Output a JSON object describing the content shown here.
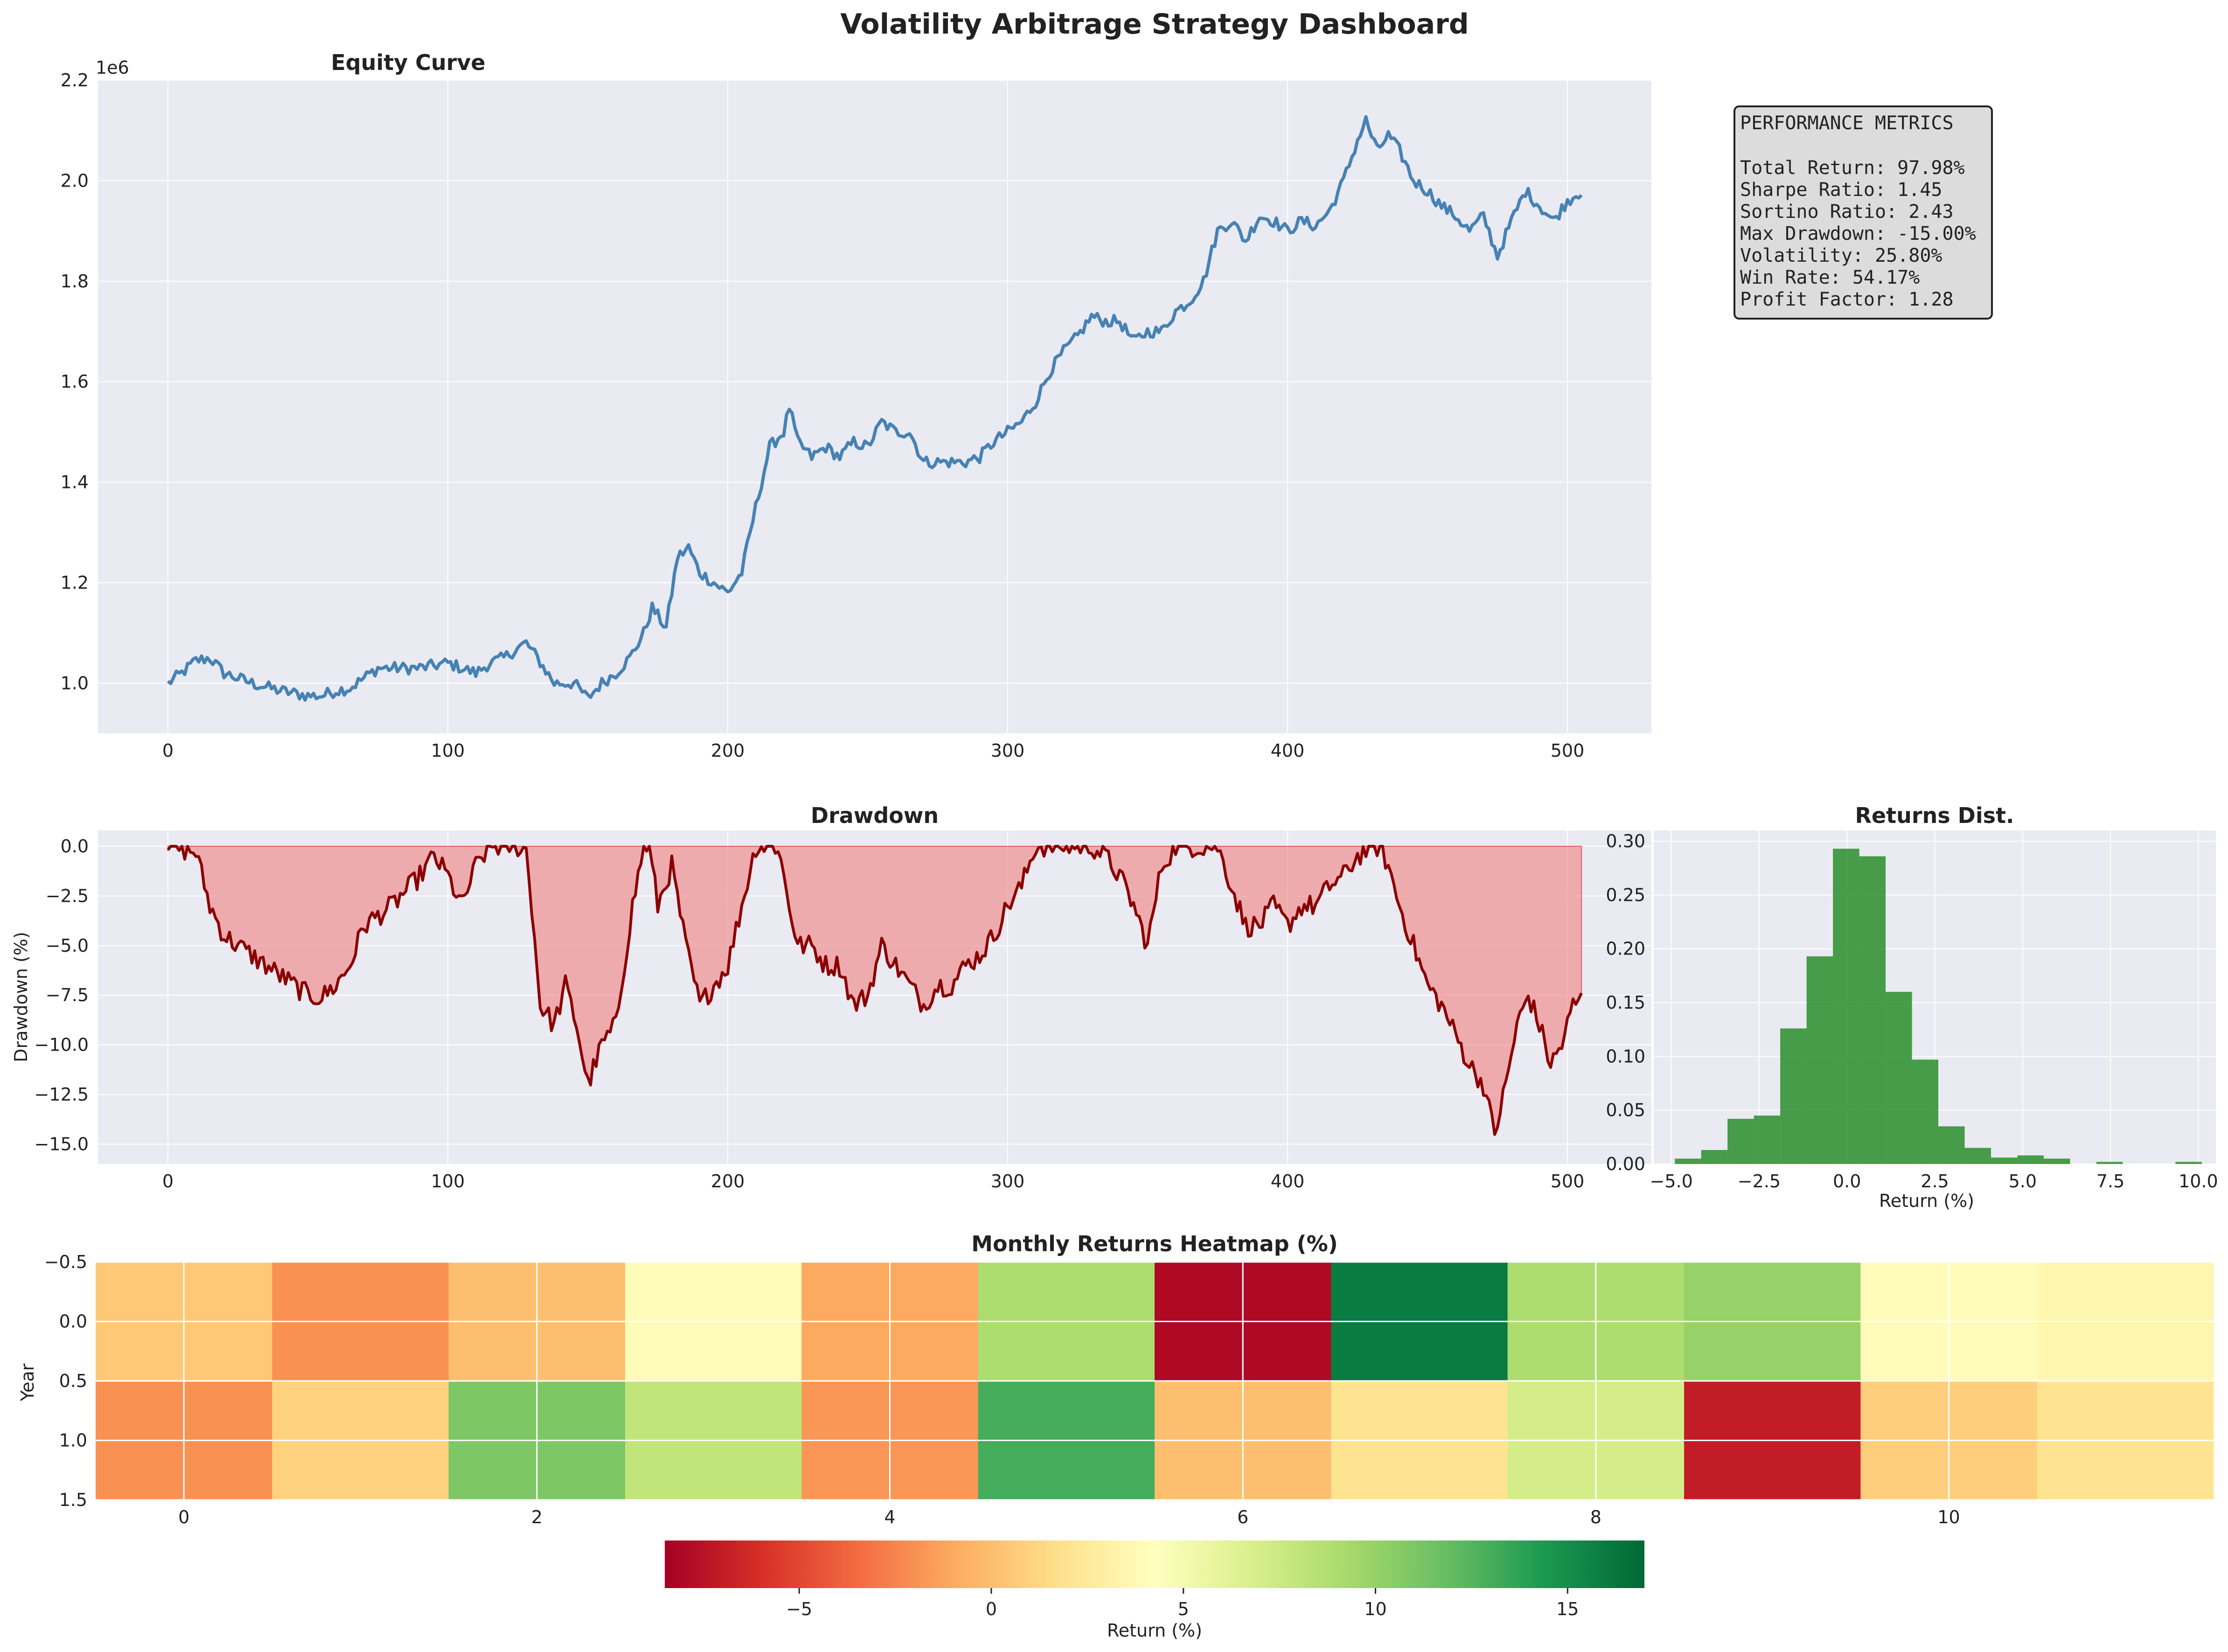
{
  "figure": {
    "title": "Volatility Arbitrage Strategy Dashboard"
  },
  "colors": {
    "panel_bg": "#eaeaf2",
    "equity_line": "#4682b4",
    "drawdown_line": "#8b0000",
    "drawdown_fill": "#f08080",
    "hist_bar": "#228b22",
    "grid": "#ffffff",
    "metrics_box": "#dcdcdc"
  },
  "metrics": {
    "heading": "PERFORMANCE METRICS",
    "lines": [
      "Total Return: 97.98%",
      "Sharpe Ratio: 1.45",
      "Sortino Ratio: 2.43",
      "Max Drawdown: -15.00%",
      "Volatility: 25.80%",
      "Win Rate: 54.17%",
      "Profit Factor: 1.28"
    ]
  },
  "chart_data": [
    {
      "id": "equity",
      "type": "line",
      "title": "Equity Curve",
      "xlabel": "",
      "ylabel": "",
      "offset_text": "1e6",
      "xlim": [
        -25,
        530
      ],
      "ylim": [
        0.9,
        2.2
      ],
      "xticks": [
        0,
        100,
        200,
        300,
        400,
        500
      ],
      "yticks": [
        1.0,
        1.2,
        1.4,
        1.6,
        1.8,
        2.0,
        2.2
      ],
      "ytick_labels": [
        "1.0",
        "1.2",
        "1.4",
        "1.6",
        "1.8",
        "2.0",
        "2.2"
      ],
      "grid": true,
      "anchors": [
        [
          0,
          1.0
        ],
        [
          5,
          1.02
        ],
        [
          10,
          1.045
        ],
        [
          15,
          1.05
        ],
        [
          20,
          1.02
        ],
        [
          25,
          1.01
        ],
        [
          30,
          1.0
        ],
        [
          40,
          0.985
        ],
        [
          45,
          0.98
        ],
        [
          50,
          0.975
        ],
        [
          55,
          0.975
        ],
        [
          60,
          0.985
        ],
        [
          65,
          0.99
        ],
        [
          70,
          1.01
        ],
        [
          75,
          1.03
        ],
        [
          80,
          1.03
        ],
        [
          90,
          1.03
        ],
        [
          100,
          1.04
        ],
        [
          110,
          1.02
        ],
        [
          115,
          1.04
        ],
        [
          120,
          1.05
        ],
        [
          125,
          1.07
        ],
        [
          128,
          1.08
        ],
        [
          132,
          1.05
        ],
        [
          138,
          1.0
        ],
        [
          145,
          1.0
        ],
        [
          150,
          0.97
        ],
        [
          155,
          1.0
        ],
        [
          160,
          1.02
        ],
        [
          165,
          1.05
        ],
        [
          170,
          1.1
        ],
        [
          173,
          1.15
        ],
        [
          178,
          1.11
        ],
        [
          182,
          1.25
        ],
        [
          186,
          1.27
        ],
        [
          190,
          1.22
        ],
        [
          195,
          1.2
        ],
        [
          200,
          1.18
        ],
        [
          205,
          1.22
        ],
        [
          210,
          1.35
        ],
        [
          215,
          1.47
        ],
        [
          220,
          1.5
        ],
        [
          222,
          1.55
        ],
        [
          225,
          1.48
        ],
        [
          230,
          1.45
        ],
        [
          235,
          1.47
        ],
        [
          240,
          1.45
        ],
        [
          245,
          1.48
        ],
        [
          250,
          1.47
        ],
        [
          255,
          1.52
        ],
        [
          260,
          1.5
        ],
        [
          265,
          1.5
        ],
        [
          270,
          1.44
        ],
        [
          275,
          1.44
        ],
        [
          280,
          1.44
        ],
        [
          285,
          1.44
        ],
        [
          290,
          1.45
        ],
        [
          295,
          1.48
        ],
        [
          300,
          1.5
        ],
        [
          305,
          1.52
        ],
        [
          310,
          1.56
        ],
        [
          315,
          1.62
        ],
        [
          320,
          1.66
        ],
        [
          325,
          1.69
        ],
        [
          330,
          1.73
        ],
        [
          335,
          1.72
        ],
        [
          340,
          1.72
        ],
        [
          345,
          1.68
        ],
        [
          350,
          1.7
        ],
        [
          355,
          1.7
        ],
        [
          360,
          1.74
        ],
        [
          365,
          1.76
        ],
        [
          370,
          1.8
        ],
        [
          375,
          1.9
        ],
        [
          380,
          1.92
        ],
        [
          385,
          1.88
        ],
        [
          390,
          1.93
        ],
        [
          395,
          1.92
        ],
        [
          400,
          1.9
        ],
        [
          405,
          1.92
        ],
        [
          410,
          1.91
        ],
        [
          415,
          1.94
        ],
        [
          420,
          2.0
        ],
        [
          425,
          2.08
        ],
        [
          428,
          2.12
        ],
        [
          432,
          2.06
        ],
        [
          436,
          2.09
        ],
        [
          440,
          2.06
        ],
        [
          445,
          2.0
        ],
        [
          450,
          1.98
        ],
        [
          455,
          1.95
        ],
        [
          460,
          1.93
        ],
        [
          465,
          1.9
        ],
        [
          470,
          1.93
        ],
        [
          475,
          1.85
        ],
        [
          480,
          1.92
        ],
        [
          485,
          1.98
        ],
        [
          490,
          1.95
        ],
        [
          495,
          1.92
        ],
        [
          500,
          1.96
        ],
        [
          505,
          1.98
        ]
      ],
      "noise_amplitude": 0.012
    },
    {
      "id": "drawdown",
      "type": "area",
      "title": "Drawdown",
      "xlabel": "",
      "ylabel": "Drawdown (%)",
      "xlim": [
        -25,
        530
      ],
      "ylim": [
        -16,
        0.8
      ],
      "xticks": [
        0,
        100,
        200,
        300,
        400,
        500
      ],
      "yticks": [
        0,
        -2.5,
        -5,
        -7.5,
        -10,
        -12.5,
        -15
      ],
      "ytick_labels": [
        "0.0",
        "−2.5",
        "−5.0",
        "−7.5",
        "−10.0",
        "−12.5",
        "−15.0"
      ],
      "grid": true,
      "anchors": [
        [
          0,
          0
        ],
        [
          10,
          -0.3
        ],
        [
          15,
          -3
        ],
        [
          20,
          -4.5
        ],
        [
          25,
          -5
        ],
        [
          35,
          -6
        ],
        [
          45,
          -7
        ],
        [
          50,
          -7.5
        ],
        [
          55,
          -7.6
        ],
        [
          60,
          -7
        ],
        [
          65,
          -6
        ],
        [
          70,
          -4
        ],
        [
          75,
          -3.5
        ],
        [
          80,
          -3
        ],
        [
          90,
          -1.5
        ],
        [
          95,
          -0.5
        ],
        [
          100,
          -1.5
        ],
        [
          105,
          -3
        ],
        [
          110,
          -1
        ],
        [
          115,
          0
        ],
        [
          125,
          0
        ],
        [
          128,
          -0.2
        ],
        [
          130,
          -3
        ],
        [
          133,
          -8
        ],
        [
          138,
          -9
        ],
        [
          142,
          -7
        ],
        [
          146,
          -9
        ],
        [
          150,
          -12
        ],
        [
          155,
          -10
        ],
        [
          160,
          -9
        ],
        [
          163,
          -6
        ],
        [
          166,
          -3
        ],
        [
          170,
          0
        ],
        [
          172,
          0
        ],
        [
          175,
          -3
        ],
        [
          180,
          -1
        ],
        [
          185,
          -5
        ],
        [
          190,
          -8
        ],
        [
          195,
          -7
        ],
        [
          200,
          -6
        ],
        [
          205,
          -3
        ],
        [
          210,
          0
        ],
        [
          218,
          0
        ],
        [
          222,
          -3
        ],
        [
          225,
          -5
        ],
        [
          230,
          -5
        ],
        [
          235,
          -6
        ],
        [
          240,
          -6
        ],
        [
          245,
          -8
        ],
        [
          250,
          -7.5
        ],
        [
          255,
          -5
        ],
        [
          260,
          -6
        ],
        [
          265,
          -7
        ],
        [
          270,
          -8
        ],
        [
          275,
          -7
        ],
        [
          280,
          -7
        ],
        [
          285,
          -6
        ],
        [
          290,
          -5.5
        ],
        [
          295,
          -4.5
        ],
        [
          300,
          -3
        ],
        [
          305,
          -2
        ],
        [
          310,
          0
        ],
        [
          320,
          0
        ],
        [
          330,
          0
        ],
        [
          335,
          -0.5
        ],
        [
          340,
          -1.5
        ],
        [
          345,
          -3
        ],
        [
          350,
          -5
        ],
        [
          355,
          -1
        ],
        [
          360,
          0
        ],
        [
          365,
          0
        ],
        [
          375,
          0
        ],
        [
          380,
          -2
        ],
        [
          385,
          -4
        ],
        [
          390,
          -4
        ],
        [
          395,
          -3
        ],
        [
          400,
          -4
        ],
        [
          405,
          -3
        ],
        [
          410,
          -3
        ],
        [
          415,
          -2
        ],
        [
          420,
          -1.5
        ],
        [
          425,
          -0.5
        ],
        [
          430,
          0
        ],
        [
          433,
          0
        ],
        [
          436,
          -1
        ],
        [
          440,
          -3
        ],
        [
          445,
          -5
        ],
        [
          450,
          -7
        ],
        [
          455,
          -8
        ],
        [
          460,
          -9.5
        ],
        [
          465,
          -11
        ],
        [
          470,
          -12
        ],
        [
          474,
          -14.5
        ],
        [
          478,
          -12
        ],
        [
          482,
          -9
        ],
        [
          486,
          -7.5
        ],
        [
          490,
          -9
        ],
        [
          494,
          -11
        ],
        [
          498,
          -10
        ],
        [
          502,
          -8
        ],
        [
          505,
          -7.7
        ]
      ],
      "noise_amplitude": 0.55
    },
    {
      "id": "returns_dist",
      "type": "bar",
      "title": "Returns Dist.",
      "xlabel": "Return (%)",
      "ylabel": "",
      "xlim": [
        -5.5,
        10.5
      ],
      "ylim": [
        0,
        0.31
      ],
      "xticks": [
        -5.0,
        -2.5,
        0.0,
        2.5,
        5.0,
        7.5,
        10.0
      ],
      "xtick_labels": [
        "−5.0",
        "−2.5",
        "0.0",
        "2.5",
        "5.0",
        "7.5",
        "10.0"
      ],
      "yticks": [
        0.0,
        0.05,
        0.1,
        0.15,
        0.2,
        0.25,
        0.3
      ],
      "ytick_labels": [
        "0.00",
        "0.05",
        "0.10",
        "0.15",
        "0.20",
        "0.25",
        "0.30"
      ],
      "grid": true,
      "bin_edges": [
        -4.9,
        -4.15,
        -3.4,
        -2.65,
        -1.9,
        -1.15,
        -0.4,
        0.35,
        1.1,
        1.85,
        2.6,
        3.35,
        4.1,
        4.85,
        5.6,
        6.35,
        7.1,
        7.85,
        8.6,
        9.35,
        10.1
      ],
      "values": [
        0.005,
        0.013,
        0.042,
        0.045,
        0.126,
        0.193,
        0.293,
        0.286,
        0.16,
        0.097,
        0.035,
        0.015,
        0.006,
        0.008,
        0.005,
        0.0,
        0.002,
        0.0,
        0.0,
        0.002
      ]
    },
    {
      "id": "monthly_heatmap",
      "type": "heatmap",
      "title": "Monthly Returns Heatmap (%)",
      "xlabel": "",
      "ylabel": "Year",
      "xticks": [
        0,
        2,
        4,
        6,
        8,
        10
      ],
      "yticks": [
        -0.5,
        0.0,
        0.5,
        1.0,
        1.5
      ],
      "ytick_labels": [
        "−0.5",
        "0.0",
        "0.5",
        "1.0",
        "1.5"
      ],
      "grid": true,
      "values": [
        [
          0.5,
          -2.0,
          0.0,
          4.0,
          -1.0,
          9.0,
          -8.0,
          16.0,
          9.0,
          10.0,
          4.0,
          3.5
        ],
        [
          -2.0,
          1.0,
          11.0,
          8.0,
          -1.8,
          13.0,
          0.0,
          2.0,
          7.0,
          -7.0,
          0.8,
          2.0
        ]
      ],
      "vmin": -8.5,
      "vmax": 17.0
    },
    {
      "id": "colorbar",
      "type": "colorbar",
      "label": "Return (%)",
      "ticks": [
        -5,
        0,
        5,
        10,
        15
      ],
      "tick_labels": [
        "−5",
        "0",
        "5",
        "10",
        "15"
      ],
      "vmin": -8.5,
      "vmax": 17.0
    }
  ]
}
